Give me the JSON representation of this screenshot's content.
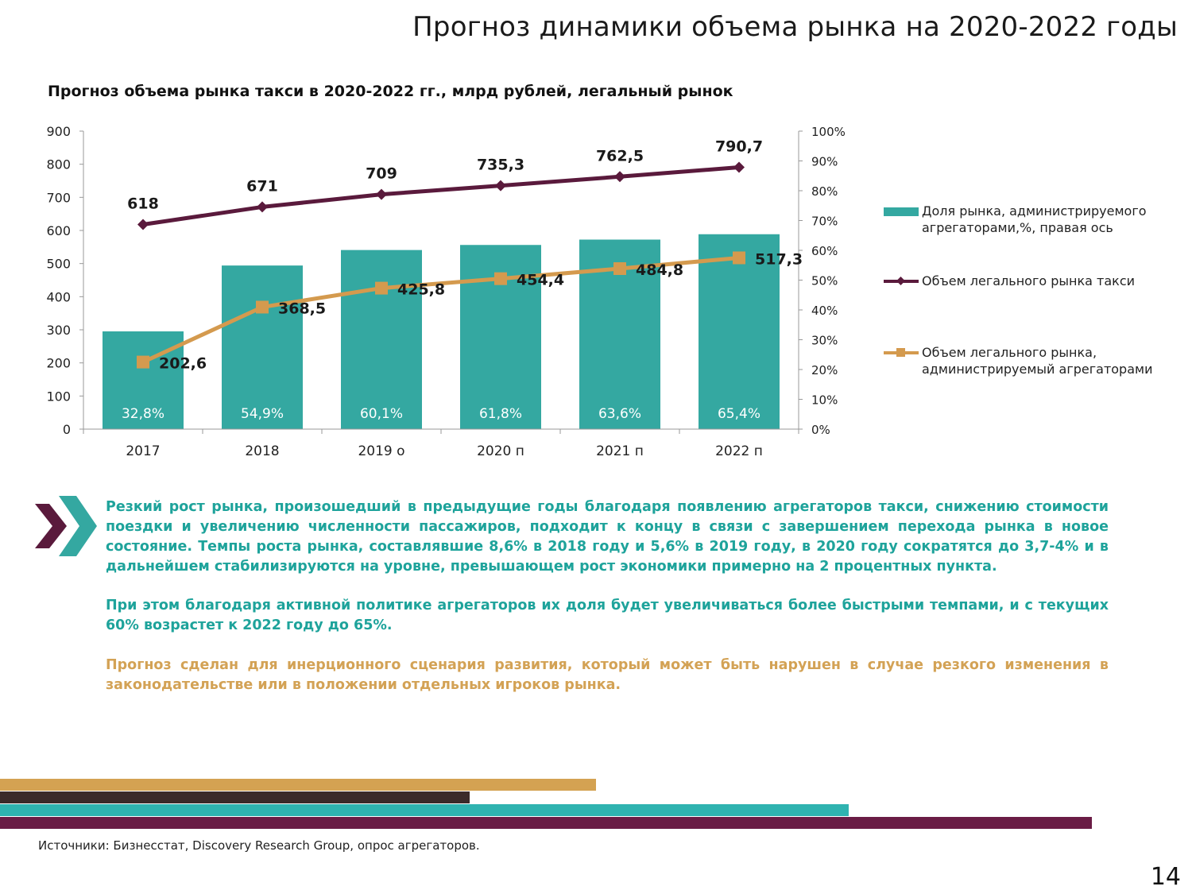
{
  "page": {
    "title": "Прогноз динамики объема рынка на 2020-2022 годы",
    "sources": "Источники: Бизнесстат, Discovery Research Group, опрос агрегаторов.",
    "page_number": "14"
  },
  "chart_data": {
    "type": "bar",
    "title": "Прогноз объема рынка такси в 2020-2022 гг., млрд рублей, легальный рынок",
    "categories": [
      "2017",
      "2018",
      "2019 о",
      "2020 п",
      "2021 п",
      "2022 п"
    ],
    "y_left": {
      "min": 0,
      "max": 900,
      "ticks": [
        "0",
        "100",
        "200",
        "300",
        "400",
        "500",
        "600",
        "700",
        "800",
        "900"
      ]
    },
    "y_right": {
      "min": 0,
      "max": 100,
      "ticks": [
        "0%",
        "10%",
        "20%",
        "30%",
        "40%",
        "50%",
        "60%",
        "70%",
        "80%",
        "90%",
        "100%"
      ]
    },
    "legend_position": "right",
    "series": [
      {
        "name": "Доля рынка, администрируемого агрегаторами,%, правая ось",
        "legend_lines": [
          "Доля рынка, администрируемого",
          "агрегаторами,%, правая ось"
        ],
        "kind": "bar",
        "axis": "right",
        "color": "#34a8a1",
        "values": [
          32.8,
          54.9,
          60.1,
          61.8,
          63.6,
          65.4
        ],
        "labels": [
          "32,8%",
          "54,9%",
          "60,1%",
          "61,8%",
          "63,6%",
          "65,4%"
        ]
      },
      {
        "name": "Объем легального рынка такси",
        "legend_lines": [
          "Объем легального рынка такси"
        ],
        "kind": "line",
        "axis": "left",
        "color": "#5a1a3c",
        "marker": "diamond",
        "values": [
          618,
          671,
          709,
          735.3,
          762.5,
          790.7
        ],
        "labels": [
          "618",
          "671",
          "709",
          "735,3",
          "762,5",
          "790,7"
        ]
      },
      {
        "name": "Объем легального рынка, администрируемый агрегаторами",
        "legend_lines": [
          "Объем легального рынка,",
          "администрируемый агрегаторами"
        ],
        "kind": "line",
        "axis": "left",
        "color": "#d49a4e",
        "marker": "square",
        "values": [
          202.6,
          368.5,
          425.8,
          454.4,
          484.8,
          517.3
        ],
        "labels": [
          "202,6",
          "368,5",
          "425,8",
          "454,4",
          "484,8",
          "517,3"
        ]
      }
    ]
  },
  "paragraphs": [
    "Резкий рост рынка, произошедший в предыдущие годы благодаря появлению агрегаторов такси, снижению стоимости поездки и увеличению численности пассажиров, подходит к концу в связи с завершением перехода рынка в новое состояние. Темпы роста рынка, составлявшие 8,6% в 2018 году и 5,6% в 2019 году, в 2020 году сократятся до 3,7-4% и в дальнейшем стабилизируются на уровне, превышающем рост экономики примерно на 2 процентных пункта.",
    "При этом благодаря активной политике агрегаторов их доля будет увеличиваться более быстрыми темпами, и с текущих 60% возрастет к 2022 году до 65%.",
    "Прогноз сделан для инерционного сценария развития, который может быть нарушен в случае резкого изменения в законодательстве или в положении отдельных игроков рынка."
  ],
  "colors": {
    "teal": "#34a8a1",
    "plum": "#5a1a3c",
    "gold": "#d49a4e",
    "dark": "#3d2b2b",
    "text_teal": "#1ea39b",
    "text_gold": "#d3a255"
  }
}
